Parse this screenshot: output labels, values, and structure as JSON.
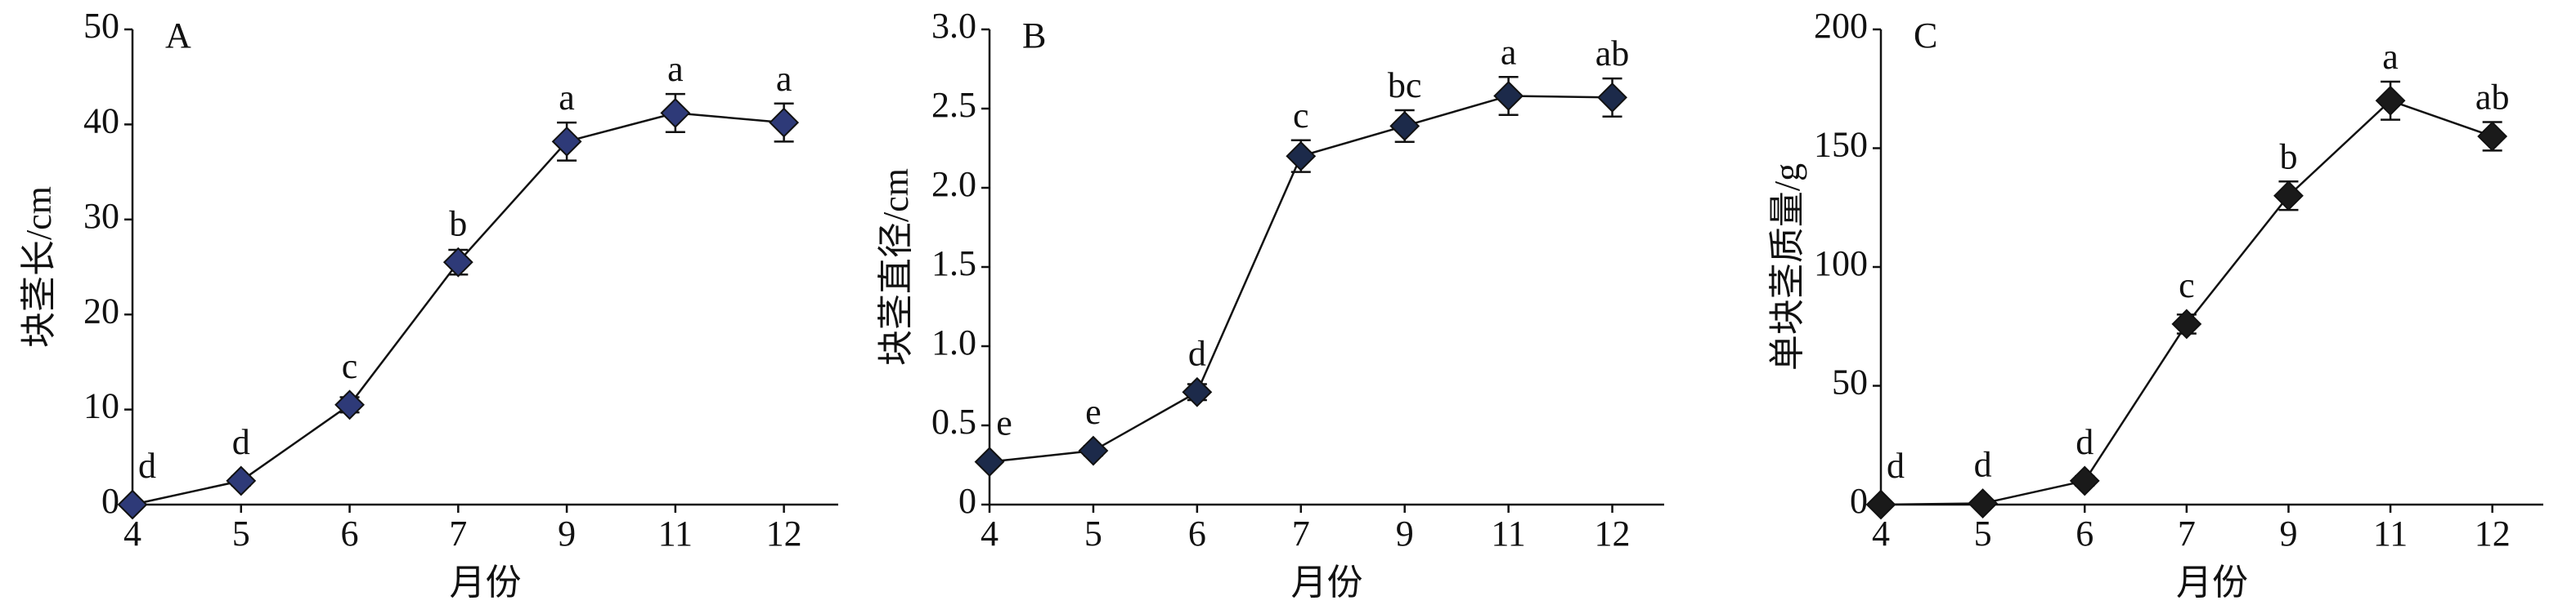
{
  "chart_data": [
    {
      "type": "line",
      "title": "A",
      "xlabel": "月份",
      "ylabel": "块茎长/cm",
      "categories": [
        "4",
        "5",
        "6",
        "7",
        "9",
        "11",
        "12"
      ],
      "series": [
        {
          "color": "#2e3a78",
          "values": [
            0,
            2.5,
            10.5,
            25.5,
            38.2,
            41.2,
            40.2
          ],
          "errors": [
            0.3,
            0.5,
            0.8,
            1.3,
            2.0,
            2.0,
            2.0
          ],
          "labels": [
            "d",
            "d",
            "c",
            "b",
            "a",
            "a",
            "a"
          ]
        }
      ],
      "ylim": [
        0,
        50
      ],
      "yticks": [
        0,
        10,
        20,
        30,
        40,
        50
      ]
    },
    {
      "type": "line",
      "title": "B",
      "xlabel": "月份",
      "ylabel": "块茎直径/cm",
      "categories": [
        "4",
        "5",
        "6",
        "7",
        "9",
        "11",
        "12"
      ],
      "series": [
        {
          "color": "#1c2a4a",
          "values": [
            0.27,
            0.34,
            0.71,
            2.2,
            2.39,
            2.58,
            2.57
          ],
          "errors": [
            0.02,
            0.03,
            0.05,
            0.1,
            0.1,
            0.12,
            0.12
          ],
          "labels": [
            "e",
            "e",
            "d",
            "c",
            "bc",
            "a",
            "ab"
          ]
        }
      ],
      "ylim": [
        0,
        3.0
      ],
      "yticks": [
        0,
        0.5,
        {
          "value": 1.0,
          "label": "1.0"
        },
        1.5,
        {
          "value": 2.0,
          "label": "2.0"
        },
        2.5,
        {
          "value": 3.0,
          "label": "3.0"
        }
      ]
    },
    {
      "type": "line",
      "title": "C",
      "xlabel": "月份",
      "ylabel": "单块茎质量/g",
      "categories": [
        "4",
        "5",
        "6",
        "7",
        "9",
        "11",
        "12"
      ],
      "series": [
        {
          "color": "#1a1a1a",
          "values": [
            0,
            0.5,
            10,
            76,
            130,
            170,
            155
          ],
          "errors": [
            0.5,
            0.5,
            2,
            4,
            6,
            8,
            6
          ],
          "labels": [
            "d",
            "d",
            "d",
            "c",
            "b",
            "a",
            "ab"
          ]
        }
      ],
      "ylim": [
        0,
        200
      ],
      "yticks": [
        0,
        50,
        100,
        150,
        200
      ]
    }
  ]
}
